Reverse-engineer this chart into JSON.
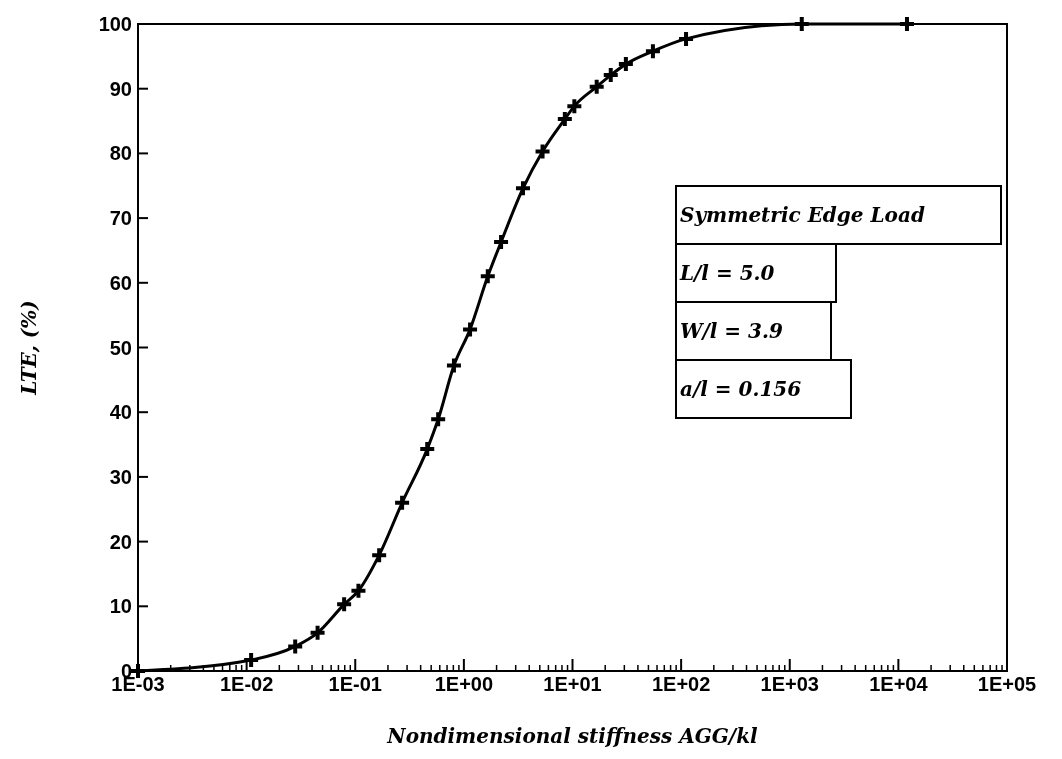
{
  "chart_data": {
    "type": "line",
    "xlabel": "Nondimensional stiffness AGG/kl",
    "ylabel": "LTE, (%)",
    "log": "x",
    "xlim": [
      0.001,
      100000
    ],
    "xticks": [
      {
        "value": 0.001,
        "label": "1E-03"
      },
      {
        "value": 0.01,
        "label": "1E-02"
      },
      {
        "value": 0.1,
        "label": "1E-01"
      },
      {
        "value": 1,
        "label": "1E+00"
      },
      {
        "value": 10,
        "label": "1E+01"
      },
      {
        "value": 100,
        "label": "1E+02"
      },
      {
        "value": 1000,
        "label": "1E+03"
      },
      {
        "value": 10000,
        "label": "1E+04"
      },
      {
        "value": 100000,
        "label": "1E+05"
      }
    ],
    "ylim": [
      0,
      100
    ],
    "yticks": [
      0,
      10,
      20,
      30,
      40,
      50,
      60,
      70,
      80,
      90,
      100
    ],
    "grid": false,
    "marker": "cross",
    "line_style": "solid",
    "annotations": [
      "Symmetric Edge Load",
      "L/l = 5.0",
      "W/l = 3.9",
      "a/l = 0.156"
    ],
    "series": [
      {
        "color": "#000000",
        "x": [
          0.001,
          0.011,
          0.028,
          0.045,
          0.079,
          0.107,
          0.166,
          0.27,
          0.46,
          0.58,
          0.81,
          1.14,
          1.66,
          2.2,
          3.5,
          5.3,
          8.5,
          10.4,
          16.7,
          22.5,
          31,
          55,
          111,
          1290,
          12000
        ],
        "values": [
          0,
          1.7,
          3.8,
          5.9,
          10.3,
          12.4,
          17.9,
          26,
          34.3,
          38.9,
          47.2,
          52.8,
          61,
          66.3,
          74.6,
          80.3,
          85.3,
          87.3,
          90.3,
          92.1,
          93.8,
          95.8,
          97.7,
          100,
          100
        ]
      }
    ]
  }
}
